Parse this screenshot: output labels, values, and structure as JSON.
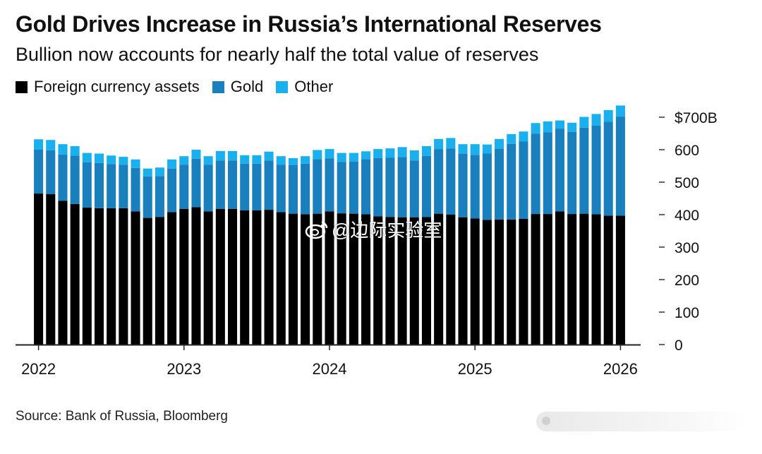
{
  "title": "Gold Drives Increase in Russia’s International Reserves",
  "subtitle": "Bullion now accounts for nearly half the total value of reserves",
  "source": "Source: Bank of Russia, Bloomberg",
  "watermark": "@边际实验室",
  "colors": {
    "fx": "#000000",
    "gold": "#1a7fbd",
    "other": "#1ab0ee",
    "axis": "#222222"
  },
  "legend": [
    {
      "label": "Foreign currency assets",
      "color": "#000000"
    },
    {
      "label": "Gold",
      "color": "#1a7fbd"
    },
    {
      "label": "Other",
      "color": "#1ab0ee"
    }
  ],
  "chart_data": {
    "type": "bar",
    "stacked": true,
    "title": "Gold Drives Increase in Russia’s International Reserves",
    "subtitle": "Bullion now accounts for nearly half the total value of reserves",
    "xlabel": "",
    "ylabel": "",
    "ylim": [
      0,
      750
    ],
    "y_ticks": [
      0,
      100,
      200,
      300,
      400,
      500,
      600,
      700
    ],
    "y_tick_labels": [
      "0",
      "100",
      "200",
      "300",
      "400",
      "500",
      "600",
      "$700B"
    ],
    "x_tick_labels": [
      "2022",
      "2023",
      "2024",
      "2025",
      "2026"
    ],
    "x_tick_positions": [
      0,
      12,
      24,
      36,
      48
    ],
    "categories": [
      "2022-01",
      "2022-02",
      "2022-03",
      "2022-04",
      "2022-05",
      "2022-06",
      "2022-07",
      "2022-08",
      "2022-09",
      "2022-10",
      "2022-11",
      "2022-12",
      "2023-01",
      "2023-02",
      "2023-03",
      "2023-04",
      "2023-05",
      "2023-06",
      "2023-07",
      "2023-08",
      "2023-09",
      "2023-10",
      "2023-11",
      "2023-12",
      "2024-01",
      "2024-02",
      "2024-03",
      "2024-04",
      "2024-05",
      "2024-06",
      "2024-07",
      "2024-08",
      "2024-09",
      "2024-10",
      "2024-11",
      "2024-12",
      "2025-01",
      "2025-02",
      "2025-03",
      "2025-04",
      "2025-05",
      "2025-06",
      "2025-07",
      "2025-08",
      "2025-09",
      "2025-10",
      "2025-11",
      "2025-12",
      "2026-01"
    ],
    "series": [
      {
        "name": "Foreign currency assets",
        "color": "#000000",
        "values": [
          465,
          463,
          443,
          433,
          422,
          420,
          420,
          420,
          410,
          390,
          393,
          408,
          418,
          423,
          410,
          418,
          418,
          413,
          413,
          415,
          408,
          403,
          401,
          403,
          410,
          404,
          403,
          401,
          395,
          393,
          392,
          392,
          393,
          403,
          400,
          392,
          388,
          384,
          385,
          385,
          387,
          402,
          402,
          410,
          402,
          403,
          401,
          397,
          397
        ]
      },
      {
        "name": "Gold",
        "color": "#1a7fbd",
        "values": [
          135,
          135,
          142,
          149,
          139,
          139,
          136,
          134,
          134,
          128,
          126,
          134,
          136,
          149,
          144,
          149,
          149,
          144,
          144,
          152,
          146,
          150,
          156,
          168,
          163,
          158,
          160,
          170,
          179,
          182,
          185,
          175,
          188,
          199,
          204,
          195,
          196,
          204,
          218,
          233,
          238,
          247,
          252,
          255,
          253,
          265,
          273,
          289,
          305
        ]
      },
      {
        "name": "Other",
        "color": "#1ab0ee",
        "values": [
          32,
          32,
          32,
          29,
          29,
          29,
          26,
          24,
          26,
          24,
          26,
          28,
          26,
          28,
          26,
          29,
          29,
          26,
          26,
          27,
          26,
          21,
          23,
          28,
          29,
          28,
          27,
          24,
          28,
          29,
          31,
          31,
          30,
          31,
          32,
          30,
          33,
          28,
          30,
          30,
          31,
          33,
          33,
          25,
          28,
          33,
          36,
          36,
          34
        ]
      }
    ]
  }
}
